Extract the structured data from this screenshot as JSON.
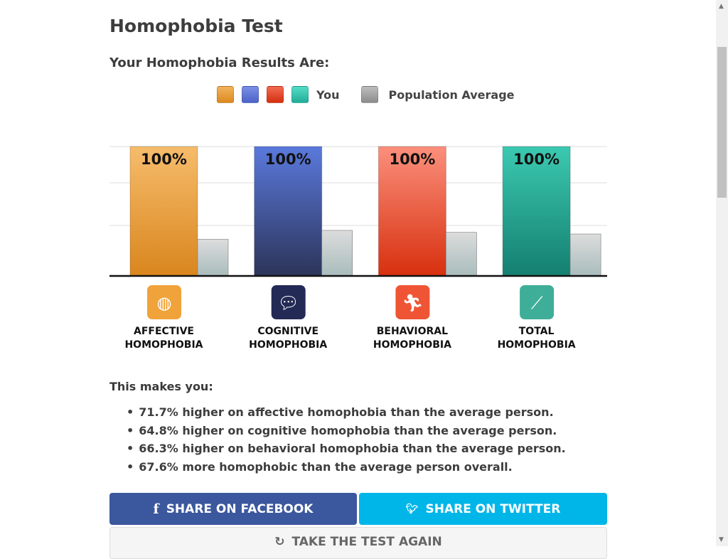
{
  "title": "Homophobia Test",
  "subtitle": "Your Homophobia Results Are:",
  "legend": {
    "you": "You",
    "population": "Population Average",
    "you_colors": [
      "#e3962c",
      "#5d74d6",
      "#dc3b1f",
      "#2fc4ad"
    ],
    "population_color": "#999999"
  },
  "chart_data": {
    "type": "bar",
    "categories": [
      "AFFECTIVE HOMOPHOBIA",
      "COGNITIVE HOMOPHOBIA",
      "BEHAVIORAL HOMOPHOBIA",
      "TOTAL HOMOPHOBIA"
    ],
    "series": [
      {
        "name": "You",
        "values": [
          100,
          100,
          100,
          100
        ],
        "labels": [
          "100%",
          "100%",
          "100%",
          "100%"
        ]
      },
      {
        "name": "Population Average",
        "values": [
          28.3,
          35.2,
          33.7,
          32.4
        ]
      }
    ],
    "ylim": [
      0,
      100
    ],
    "grid": true,
    "bar_colors": [
      [
        "#f6bc6b",
        "#d9861e"
      ],
      [
        "#5a79dc",
        "#2c3459"
      ],
      [
        "#fb8f7c",
        "#d7300e"
      ],
      [
        "#3bc9b1",
        "#147f70"
      ]
    ],
    "icons": [
      "mask-icon",
      "thought-bubble-icon",
      "running-person-icon",
      "line-graph-icon"
    ],
    "icon_colors": [
      "#f0a33a",
      "#232a55",
      "#ef5535",
      "#3fae98"
    ]
  },
  "summary": {
    "heading": "This makes you:",
    "items": [
      "71.7% higher on affective homophobia than the average person.",
      "64.8% higher on cognitive homophobia than the average person.",
      "66.3% higher on behavioral homophobia than the average person.",
      "67.6% more homophobic than the average person overall."
    ]
  },
  "buttons": {
    "facebook": "SHARE ON FACEBOOK",
    "twitter": "SHARE ON TWITTER",
    "retake": "TAKE THE TEST AGAIN"
  }
}
